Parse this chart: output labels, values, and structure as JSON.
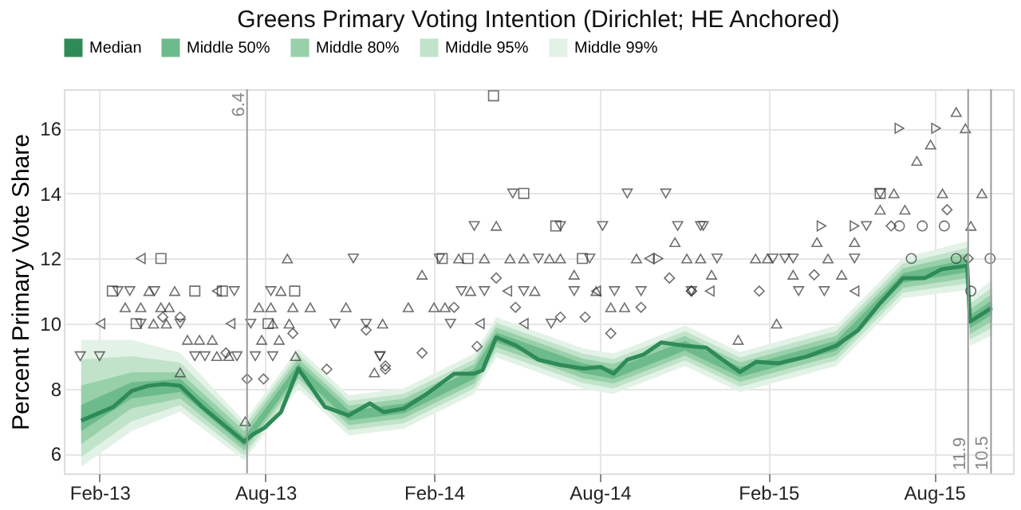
{
  "chart_data": {
    "type": "line",
    "title": "Greens Primary Voting Intention (Dirichlet; HE Anchored)",
    "ylabel": "Percent Primary Vote Share",
    "xlim": [
      "2012-12-24",
      "2015-10-26"
    ],
    "xticks": [
      {
        "value": "2013-02-01",
        "label": "Feb-13"
      },
      {
        "value": "2013-08-01",
        "label": "Aug-13"
      },
      {
        "value": "2014-02-01",
        "label": "Feb-14"
      },
      {
        "value": "2014-08-01",
        "label": "Aug-14"
      },
      {
        "value": "2015-02-01",
        "label": "Feb-15"
      },
      {
        "value": "2015-08-01",
        "label": "Aug-15"
      }
    ],
    "ylim": [
      5.4,
      17.2
    ],
    "yticks": [
      6,
      8,
      10,
      12,
      14,
      16
    ],
    "grid": true,
    "legend": "top",
    "ref_lines": [
      {
        "axis": "x",
        "value": "2013-07-12",
        "label": "6.4",
        "color": "#999999"
      },
      {
        "axis": "x",
        "value": "2015-09-07",
        "label": "11.9",
        "color": "#999999"
      },
      {
        "axis": "x",
        "value": "2015-10-02",
        "label": "10.5",
        "color": "#999999"
      }
    ],
    "series": [
      {
        "name": "Median",
        "type": "line",
        "color": "#2e8b57",
        "line_style": "solid",
        "x": [
          "2013-01-12",
          "2013-02-16",
          "2013-03-08",
          "2013-03-26",
          "2013-04-12",
          "2013-04-30",
          "2013-05-24",
          "2013-06-11",
          "2013-07-09",
          "2013-07-18",
          "2013-07-31",
          "2013-08-18",
          "2013-09-06",
          "2013-10-05",
          "2013-10-31",
          "2013-11-23",
          "2013-12-08",
          "2013-12-30",
          "2014-01-23",
          "2014-02-23",
          "2014-03-17",
          "2014-03-26",
          "2014-04-10",
          "2014-05-02",
          "2014-05-26",
          "2014-06-19",
          "2014-07-14",
          "2014-08-02",
          "2014-08-16",
          "2014-08-31",
          "2014-09-18",
          "2014-10-07",
          "2014-11-02",
          "2014-11-25",
          "2014-12-08",
          "2015-01-01",
          "2015-01-19",
          "2015-02-12",
          "2015-03-15",
          "2015-04-16",
          "2015-05-10",
          "2015-06-02",
          "2015-06-28",
          "2015-07-22",
          "2015-08-09",
          "2015-09-06",
          "2015-09-09",
          "2015-10-03"
        ],
        "values": [
          7.02,
          7.44,
          7.93,
          8.09,
          8.14,
          8.09,
          7.44,
          7.02,
          6.37,
          6.59,
          6.8,
          7.28,
          8.62,
          7.44,
          7.18,
          7.55,
          7.28,
          7.39,
          7.82,
          8.46,
          8.46,
          8.57,
          9.58,
          9.32,
          8.89,
          8.73,
          8.62,
          8.67,
          8.46,
          8.89,
          9.05,
          9.42,
          9.32,
          9.26,
          8.99,
          8.51,
          8.83,
          8.78,
          8.99,
          9.32,
          9.8,
          10.6,
          11.4,
          11.4,
          11.67,
          11.78,
          10.06,
          10.49
        ]
      },
      {
        "name": "Middle 50%",
        "type": "line",
        "color": "#6dbb8a",
        "x": [
          "2013-01-12",
          "2013-03-08",
          "2013-04-30",
          "2013-07-09",
          "2013-09-06",
          "2013-10-31",
          "2013-12-30",
          "2014-03-17",
          "2014-04-10",
          "2014-07-14",
          "2014-08-16",
          "2014-11-02",
          "2015-01-01",
          "2015-04-16",
          "2015-06-28",
          "2015-09-06",
          "2015-09-09",
          "2015-10-03"
        ],
        "values": [
          null,
          null,
          null,
          null,
          null,
          null,
          null,
          null,
          null,
          null,
          null,
          null,
          null,
          null,
          null,
          null,
          null,
          null
        ],
        "lower": [
          6.7,
          7.7,
          7.9,
          6.22,
          8.47,
          7.03,
          7.24,
          8.31,
          9.43,
          8.47,
          8.31,
          9.17,
          8.36,
          9.17,
          11.25,
          11.58,
          9.86,
          10.27
        ],
        "upper": [
          7.5,
          8.2,
          8.3,
          6.52,
          8.77,
          7.33,
          7.54,
          8.61,
          9.73,
          8.77,
          8.61,
          9.47,
          8.66,
          9.47,
          11.55,
          11.98,
          10.26,
          10.71
        ]
      },
      {
        "name": "Middle 80%",
        "type": "line",
        "color": "#98d0a9",
        "x": [
          "2013-01-12",
          "2013-03-08",
          "2013-04-30",
          "2013-07-09",
          "2013-09-06",
          "2013-10-31",
          "2013-12-30",
          "2014-03-17",
          "2014-04-10",
          "2014-07-14",
          "2014-08-16",
          "2014-11-02",
          "2015-01-01",
          "2015-04-16",
          "2015-06-28",
          "2015-09-06",
          "2015-09-09",
          "2015-10-03"
        ],
        "values": [
          null,
          null,
          null,
          null,
          null,
          null,
          null,
          null,
          null,
          null,
          null,
          null,
          null,
          null,
          null,
          null,
          null,
          null
        ],
        "lower": [
          6.3,
          7.4,
          7.7,
          6.1,
          8.32,
          6.88,
          7.09,
          8.16,
          9.28,
          8.32,
          8.16,
          9.02,
          8.21,
          9.02,
          11.1,
          11.4,
          9.68,
          10.07
        ],
        "upper": [
          8.1,
          8.5,
          8.5,
          6.7,
          8.92,
          7.48,
          7.69,
          8.76,
          9.88,
          8.92,
          8.76,
          9.62,
          8.81,
          9.62,
          11.7,
          12.16,
          10.44,
          10.91
        ]
      },
      {
        "name": "Middle 95%",
        "type": "line",
        "color": "#c0e3ca",
        "x": [
          "2013-01-12",
          "2013-03-08",
          "2013-04-30",
          "2013-07-09",
          "2013-09-06",
          "2013-10-31",
          "2013-12-30",
          "2014-03-17",
          "2014-04-10",
          "2014-07-14",
          "2014-08-16",
          "2014-11-02",
          "2015-01-01",
          "2015-04-16",
          "2015-06-28",
          "2015-09-06",
          "2015-09-09",
          "2015-10-03"
        ],
        "values": [
          null,
          null,
          null,
          null,
          null,
          null,
          null,
          null,
          null,
          null,
          null,
          null,
          null,
          null,
          null,
          null,
          null,
          null
        ],
        "lower": [
          5.9,
          7.0,
          7.5,
          5.95,
          8.17,
          6.73,
          6.94,
          8.01,
          9.13,
          8.17,
          8.01,
          8.87,
          8.06,
          8.87,
          10.95,
          11.23,
          9.51,
          9.87
        ],
        "upper": [
          8.9,
          9.0,
          8.8,
          6.85,
          9.07,
          7.63,
          7.84,
          8.91,
          10.03,
          9.07,
          8.91,
          9.77,
          8.96,
          9.77,
          11.85,
          12.33,
          10.61,
          11.11
        ]
      },
      {
        "name": "Middle 99%",
        "type": "line",
        "color": "#e3f2e7",
        "x": [
          "2013-01-12",
          "2013-03-08",
          "2013-04-30",
          "2013-07-09",
          "2013-09-06",
          "2013-10-31",
          "2013-12-30",
          "2014-03-17",
          "2014-04-10",
          "2014-07-14",
          "2014-08-16",
          "2014-11-02",
          "2015-01-01",
          "2015-04-16",
          "2015-06-28",
          "2015-09-06",
          "2015-09-09",
          "2015-10-03"
        ],
        "values": [
          null,
          null,
          null,
          null,
          null,
          null,
          null,
          null,
          null,
          null,
          null,
          null,
          null,
          null,
          null,
          null,
          null,
          null
        ],
        "lower": [
          5.6,
          6.7,
          7.3,
          5.8,
          8.0,
          6.56,
          6.77,
          7.84,
          8.96,
          8.0,
          7.84,
          8.7,
          7.89,
          8.7,
          10.78,
          11.03,
          9.31,
          9.64
        ],
        "upper": [
          9.5,
          9.5,
          9.1,
          7.0,
          9.24,
          7.8,
          8.01,
          9.08,
          10.2,
          9.24,
          9.08,
          9.94,
          9.13,
          9.94,
          12.02,
          12.53,
          10.81,
          11.34
        ]
      },
      {
        "type": "scatter",
        "marker": "triangle-left",
        "color": "#333333",
        "x": [
          "2013-03-18",
          "2013-02-02",
          "2013-06-09",
          "2013-06-24",
          "2014-03-23",
          "2014-04-22",
          "2014-05-10",
          "2014-07-28",
          "2014-09-24",
          "2014-11-29",
          "2015-05-06"
        ],
        "values": [
          12,
          10,
          11,
          10,
          10,
          11,
          10,
          11,
          12,
          11,
          11
        ]
      },
      {
        "type": "scatter",
        "marker": "triangle-right",
        "color": "#333333",
        "x": [
          "2014-10-04",
          "2015-03-31",
          "2015-05-06",
          "2015-06-24",
          "2015-08-03"
        ],
        "values": [
          12,
          13,
          13,
          16,
          16
        ]
      },
      {
        "type": "scatter",
        "marker": "triangle-up",
        "color": "#333333",
        "x": [
          "2013-03-01",
          "2013-03-18",
          "2013-03-27",
          "2013-04-09",
          "2013-04-18",
          "2013-04-24",
          "2013-04-01",
          "2013-04-15",
          "2013-05-08",
          "2013-05-21",
          "2013-06-04",
          "2013-06-09",
          "2013-06-22",
          "2013-04-30",
          "2013-07-10",
          "2013-07-25",
          "2013-08-07",
          "2013-08-18",
          "2013-08-25",
          "2013-08-31",
          "2013-09-19",
          "2013-10-28",
          "2013-08-09",
          "2013-08-27",
          "2013-12-07",
          "2013-07-28",
          "2013-08-16",
          "2013-09-03",
          "2013-11-28",
          "2014-01-04",
          "2014-01-19",
          "2014-02-01",
          "2014-02-13",
          "2014-02-28",
          "2014-03-13",
          "2014-03-28",
          "2014-04-10",
          "2014-04-25",
          "2014-05-10",
          "2014-05-22",
          "2014-06-07",
          "2014-06-19",
          "2014-07-04",
          "2014-07-28",
          "2014-08-13",
          "2014-08-28",
          "2014-09-10",
          "2014-10-22",
          "2014-11-04",
          "2014-11-19",
          "2014-12-01",
          "2014-12-30",
          "2015-01-18",
          "2015-01-31",
          "2015-02-10",
          "2015-02-28",
          "2015-03-26",
          "2015-04-07",
          "2015-04-22",
          "2015-05-06",
          "2015-06-03",
          "2015-06-18",
          "2015-06-30",
          "2015-07-13",
          "2015-07-28",
          "2015-08-10",
          "2015-08-25",
          "2015-09-04",
          "2015-09-10",
          "2015-09-22"
        ],
        "values": [
          10.5,
          10.5,
          11,
          10.5,
          10.5,
          11,
          10,
          10,
          9.5,
          9.5,
          9.5,
          9,
          9,
          8.5,
          7,
          10.5,
          10.5,
          11,
          12,
          10.5,
          10.5,
          10.5,
          10,
          10,
          10,
          9.5,
          9.5,
          9,
          8.5,
          10.5,
          11.5,
          10.5,
          10.5,
          12,
          11,
          12,
          13,
          12,
          12,
          11,
          12,
          12,
          11.5,
          11,
          10.5,
          10.5,
          12,
          12.5,
          12,
          12,
          11.5,
          9.5,
          12,
          12,
          10,
          11.5,
          12.5,
          12,
          11.5,
          12.5,
          13.5,
          14,
          13.5,
          15,
          15.5,
          14,
          16.5,
          16,
          13,
          14
        ]
      },
      {
        "type": "scatter",
        "marker": "triangle-down",
        "color": "#333333",
        "x": [
          "2013-01-11",
          "2013-02-01",
          "2013-02-21",
          "2013-03-06",
          "2013-04-02",
          "2013-06-28",
          "2013-08-07",
          "2013-03-18",
          "2013-04-30",
          "2013-07-16",
          "2013-10-16",
          "2013-11-19",
          "2013-05-16",
          "2013-05-27",
          "2013-07-01",
          "2013-07-21",
          "2013-08-09",
          "2013-11-05",
          "2013-12-04",
          "2013-12-04",
          "2014-02-07",
          "2014-02-19",
          "2014-03-03",
          "2014-03-17",
          "2014-03-28",
          "2014-04-28",
          "2014-05-10",
          "2014-05-26",
          "2014-06-09",
          "2014-06-19",
          "2014-07-04",
          "2014-07-21",
          "2014-08-04",
          "2014-08-17",
          "2014-08-31",
          "2014-09-15",
          "2014-10-12",
          "2014-10-25",
          "2014-11-09",
          "2014-11-19",
          "2014-11-22",
          "2014-12-07",
          "2015-02-06",
          "2015-02-19",
          "2015-02-28",
          "2015-03-06",
          "2015-04-03",
          "2015-05-06",
          "2015-05-19",
          "2015-06-03"
        ],
        "values": [
          9,
          9,
          11,
          11,
          11,
          11,
          11,
          10,
          10,
          10,
          10,
          10,
          9,
          9,
          9,
          9,
          9,
          12,
          9,
          9,
          12,
          10,
          11,
          13,
          11,
          14,
          11,
          12,
          10,
          13,
          11,
          12,
          13,
          11,
          14,
          11,
          14,
          13,
          11,
          13,
          13,
          12,
          12,
          12,
          12,
          11,
          11,
          12,
          13,
          14
        ]
      },
      {
        "type": "scatter",
        "marker": "circle",
        "color": "#333333",
        "x": [
          "2015-06-24",
          "2015-07-07",
          "2015-07-19",
          "2015-08-12",
          "2015-08-25",
          "2015-09-10",
          "2015-10-01"
        ],
        "values": [
          13,
          12,
          13,
          13,
          12,
          11,
          12
        ]
      },
      {
        "type": "scatter",
        "marker": "square",
        "color": "#333333",
        "x": [
          "2013-02-15",
          "2013-04-09",
          "2013-03-13",
          "2013-05-16",
          "2013-06-15",
          "2013-09-02",
          "2013-08-04",
          "2014-04-07",
          "2014-05-10",
          "2014-03-10",
          "2014-02-10",
          "2014-06-14",
          "2014-07-13",
          "2015-06-03"
        ],
        "values": [
          11,
          12,
          10,
          11,
          11,
          11,
          10,
          17,
          14,
          12,
          12,
          13,
          12,
          14
        ]
      },
      {
        "type": "scatter",
        "marker": "diamond",
        "color": "#333333",
        "x": [
          "2013-04-11",
          "2013-04-30",
          "2013-06-19",
          "2013-07-12",
          "2013-07-30",
          "2013-08-31",
          "2013-10-07",
          "2013-11-19",
          "2013-12-10",
          "2013-12-10",
          "2014-01-19",
          "2014-02-23",
          "2014-03-20",
          "2014-04-10",
          "2014-05-01",
          "2014-06-19",
          "2014-07-16",
          "2014-08-13",
          "2014-09-15",
          "2014-10-16",
          "2014-11-09",
          "2014-11-09",
          "2015-01-22",
          "2015-03-23",
          "2015-06-15",
          "2015-08-15",
          "2015-09-07"
        ],
        "values": [
          10.2,
          10.2,
          9.1,
          8.3,
          8.3,
          9.7,
          8.6,
          9.8,
          8.6,
          8.7,
          9.1,
          10.5,
          9.3,
          11.4,
          10.5,
          10.2,
          10.2,
          9.7,
          10.5,
          11.4,
          11,
          11,
          11,
          11.5,
          13,
          13.5,
          12
        ]
      }
    ]
  }
}
